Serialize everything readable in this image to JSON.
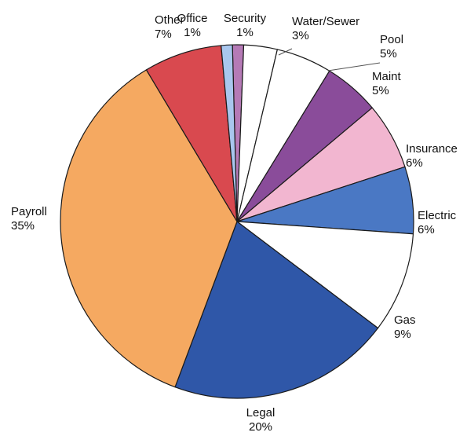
{
  "chart_data": {
    "type": "pie",
    "title": "",
    "slices": [
      {
        "name": "Security",
        "label": "Security",
        "pct_label": "1%",
        "value": 1,
        "color": "#b57ab6"
      },
      {
        "name": "Water/Sewer",
        "label": "Water/Sewer",
        "pct_label": "3%",
        "value": 3,
        "color": "#ffffff"
      },
      {
        "name": "Pool",
        "label": "Pool",
        "pct_label": "5%",
        "value": 5,
        "color": "#ffffff"
      },
      {
        "name": "Maint",
        "label": "Maint",
        "pct_label": "5%",
        "value": 5,
        "color": "#8a4c9a"
      },
      {
        "name": "Insurance",
        "label": "Insurance",
        "pct_label": "6%",
        "value": 6,
        "color": "#f2b6d0"
      },
      {
        "name": "Electric",
        "label": "Electric",
        "pct_label": "6%",
        "value": 6,
        "color": "#4a78c4"
      },
      {
        "name": "Gas",
        "label": "Gas",
        "pct_label": "9%",
        "value": 9,
        "color": "#ffffff"
      },
      {
        "name": "Legal",
        "label": "Legal",
        "pct_label": "20%",
        "value": 20,
        "color": "#2f57a8"
      },
      {
        "name": "Payroll",
        "label": "Payroll",
        "pct_label": "35%",
        "value": 35,
        "color": "#f5a961"
      },
      {
        "name": "Other",
        "label": "Other",
        "pct_label": "7%",
        "value": 7,
        "color": "#d9494f"
      },
      {
        "name": "Office",
        "label": "Office",
        "pct_label": "1%",
        "value": 1,
        "color": "#a9c7ee"
      }
    ],
    "start": "top",
    "direction": "clockwise",
    "legend": "none"
  }
}
